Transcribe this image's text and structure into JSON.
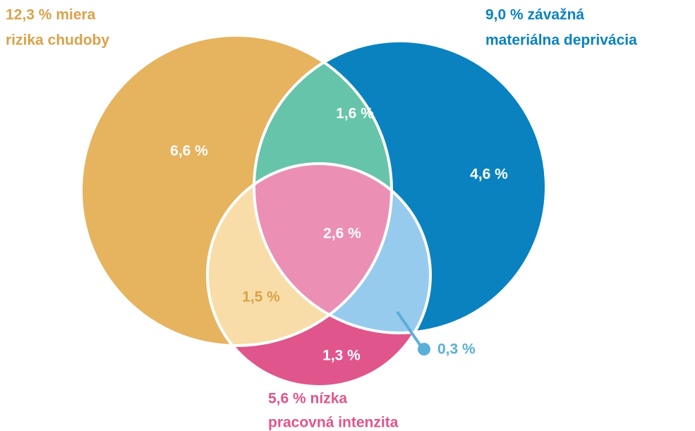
{
  "title_a": [
    "12,3 % miera",
    "rizika chudoby"
  ],
  "title_b": [
    "9,0 % závažná",
    "materiálna deprivácia"
  ],
  "title_c": [
    "5,6 % nízka",
    "pracovná intenzita"
  ],
  "regions": {
    "a_only": "6,6 %",
    "a_b": "1,6 %",
    "b_only": "4,6 %",
    "a_b_c": "2,6 %",
    "a_c": "1,5 %",
    "c_only": "1,3 %",
    "b_c": "0,3 %"
  }
}
